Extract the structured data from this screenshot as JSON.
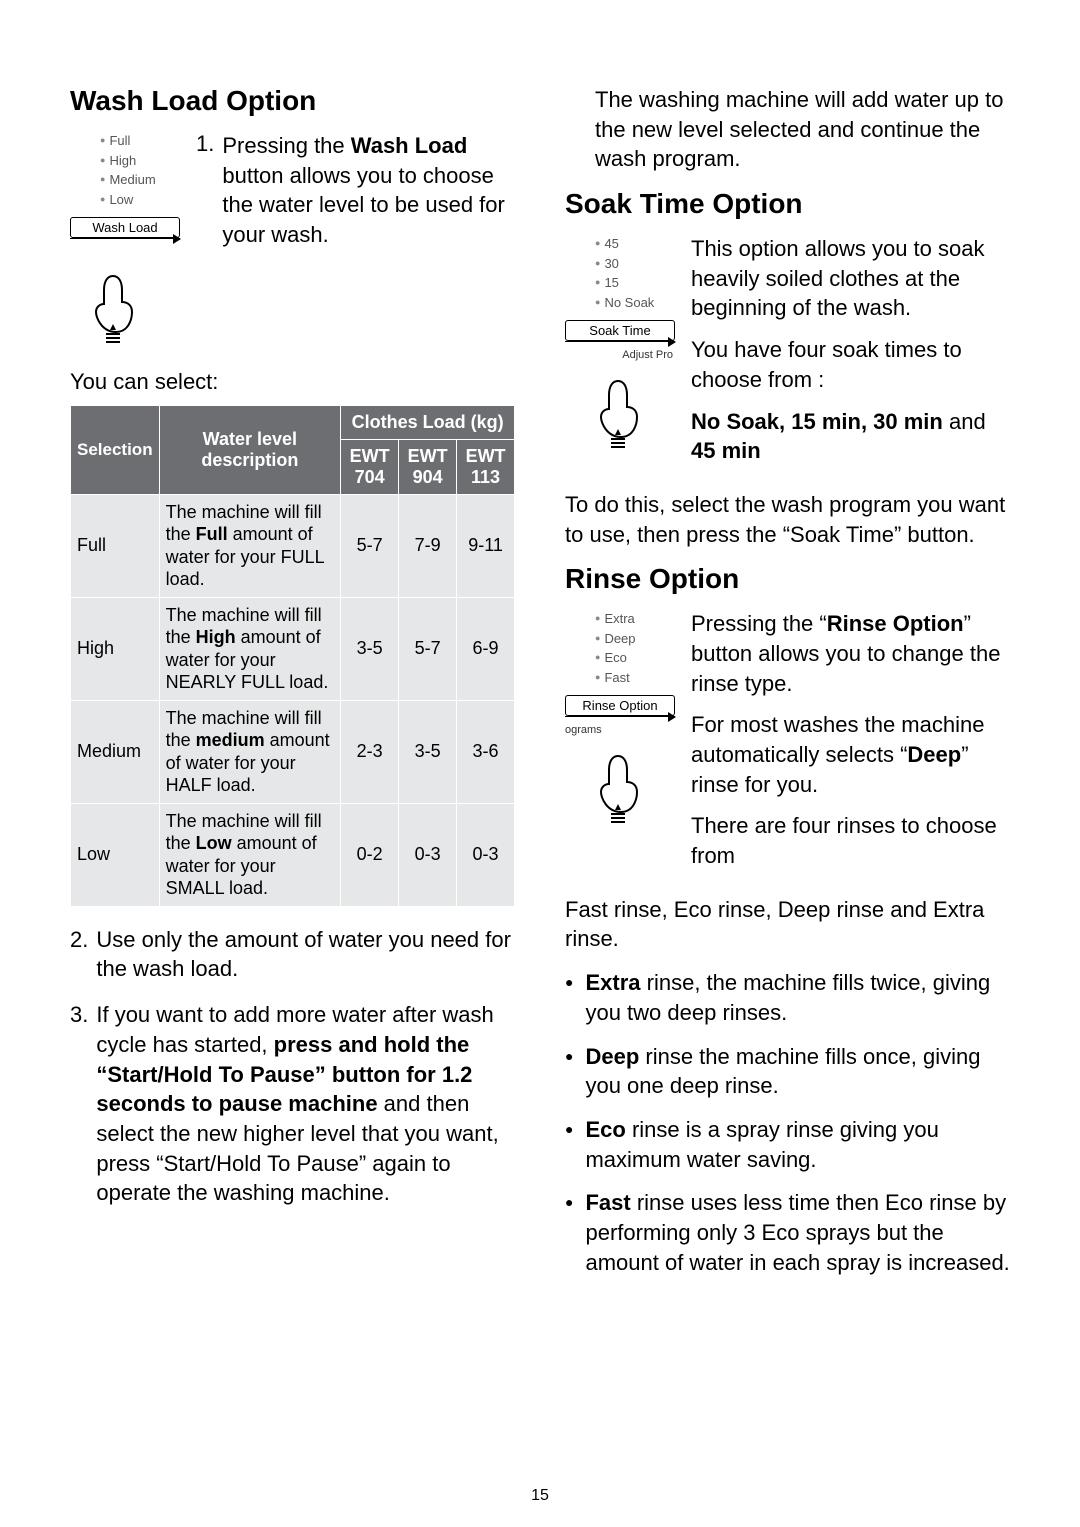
{
  "page_number": "15",
  "left": {
    "heading": "Wash Load Option",
    "panel": {
      "leds": [
        "Full",
        "High",
        "Medium",
        "Low"
      ],
      "button": "Wash Load"
    },
    "step1_pre": "Pressing the ",
    "step1_bold": "Wash Load",
    "step1_post": " button allows you to choose the water level to be used for your wash.",
    "preselect": "You can select:",
    "table": {
      "head_selection": "Selection",
      "head_water": "Water level description",
      "head_clothes": "Clothes Load (kg)",
      "cols": [
        "EWT 704",
        "EWT 904",
        "EWT 113"
      ],
      "rows": [
        {
          "sel": "Full",
          "desc_pre": "The machine will fill the ",
          "desc_bold": "Full",
          "desc_post": " amount of water for your FULL load.",
          "v": [
            "5-7",
            "7-9",
            "9-11"
          ]
        },
        {
          "sel": "High",
          "desc_pre": "The machine will fill the ",
          "desc_bold": "High",
          "desc_post": " amount of water for your NEARLY FULL load.",
          "v": [
            "3-5",
            "5-7",
            "6-9"
          ]
        },
        {
          "sel": "Medium",
          "desc_pre": "The machine will fill the ",
          "desc_bold": "medium",
          "desc_post": " amount of water for your HALF load.",
          "v": [
            "2-3",
            "3-5",
            "3-6"
          ]
        },
        {
          "sel": "Low",
          "desc_pre": "The machine will fill the ",
          "desc_bold": "Low",
          "desc_post": " amount of water for your SMALL load.",
          "v": [
            "0-2",
            "0-3",
            "0-3"
          ]
        }
      ]
    },
    "step2": "Use only the amount of water you need for the wash load.",
    "step3_pre": "If you want to add more water after wash cycle has started, ",
    "step3_bold": "press and hold the “Start/Hold To Pause” button for 1.2 seconds to pause machine",
    "step3_post": " and then select the new higher level that you want, press “Start/Hold To Pause” again to operate the washing machine."
  },
  "right": {
    "top_para": "The washing machine will add water up to the new level selected and continue the wash program.",
    "soak": {
      "heading": "Soak Time Option",
      "panel": {
        "leds": [
          "45",
          "30",
          "15",
          "No Soak"
        ],
        "button": "Soak Time",
        "sub": "Adjust Pro"
      },
      "p1": "This option allows you to soak heavily soiled clothes at the beginning of the wash.",
      "p2": "You have four soak times to choose from :",
      "p3_bold": "No Soak, 15 min, 30 min",
      "p3_mid": " and ",
      "p3_bold2": "45 min",
      "p4": "To do this, select the wash program you want to use, then press the “Soak Time” button."
    },
    "rinse": {
      "heading": "Rinse Option",
      "panel": {
        "leds": [
          "Extra",
          "Deep",
          "Eco",
          "Fast"
        ],
        "button": "Rinse Option",
        "sub": "ograms"
      },
      "p1_pre": "Pressing the “",
      "p1_bold": "Rinse Option",
      "p1_post": "” button allows you to change the rinse type.",
      "p2_pre": "For most washes the machine automatically selects “",
      "p2_bold": "Deep",
      "p2_post": "” rinse for you.",
      "p3": "There are four rinses to choose from",
      "p4": "Fast rinse, Eco rinse, Deep rinse and Extra rinse.",
      "bullets": [
        {
          "b": "Extra",
          "t": " rinse, the machine fills twice, giving you two deep rinses."
        },
        {
          "b": "Deep",
          "t": " rinse the machine fills once, giving you one deep rinse."
        },
        {
          "b": "Eco",
          "t": " rinse is a spray rinse giving you maximum water saving."
        },
        {
          "b": "Fast",
          "t": " rinse uses less time then Eco rinse by performing only 3 Eco sprays but the amount of water in each spray is increased."
        }
      ]
    }
  }
}
